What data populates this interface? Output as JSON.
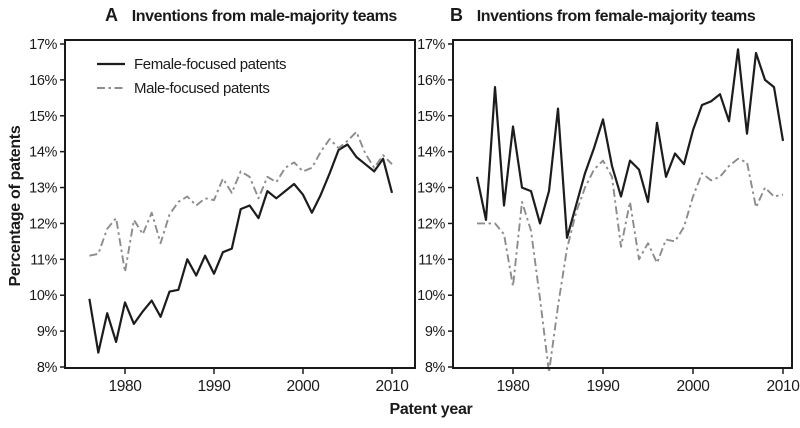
{
  "figure": {
    "background": "#ffffff",
    "text_color": "#1a1a1a",
    "axis_color": "#1a1a1a",
    "y_axis_label": "Percentage of patents",
    "x_axis_label": "Patent year",
    "panel_a": {
      "panel_letter": "A",
      "title": "Inventions from male-majority teams"
    },
    "panel_b": {
      "panel_letter": "B",
      "title": "Inventions from female-majority teams"
    },
    "legend": [
      {
        "label": "Female-focused patents",
        "style": "solid",
        "color": "#1c1c1c"
      },
      {
        "label": "Male-focused patents",
        "style": "dash-dot",
        "color": "#8c8c8c"
      }
    ]
  },
  "chart_data": [
    {
      "type": "line",
      "panel": "A",
      "title": "Inventions from male-majority teams",
      "xlabel": "Patent year",
      "ylabel": "Percentage of patents",
      "ylim": [
        8,
        17
      ],
      "grid": false,
      "legend_position": "top-left-inside",
      "y_ticks": [
        {
          "value": 8,
          "label": "8%"
        },
        {
          "value": 9,
          "label": "9%"
        },
        {
          "value": 10,
          "label": "10%"
        },
        {
          "value": 11,
          "label": "11%"
        },
        {
          "value": 12,
          "label": "12%"
        },
        {
          "value": 13,
          "label": "13%"
        },
        {
          "value": 14,
          "label": "14%"
        },
        {
          "value": 15,
          "label": "15%"
        },
        {
          "value": 16,
          "label": "16%"
        },
        {
          "value": 17,
          "label": "17%"
        }
      ],
      "x_ticks": [
        {
          "value": 1980,
          "label": "1980"
        },
        {
          "value": 1990,
          "label": "1990"
        },
        {
          "value": 2000,
          "label": "2000"
        },
        {
          "value": 2010,
          "label": "2010"
        }
      ],
      "x": [
        1976,
        1977,
        1978,
        1979,
        1980,
        1981,
        1982,
        1983,
        1984,
        1985,
        1986,
        1987,
        1988,
        1989,
        1990,
        1991,
        1992,
        1993,
        1994,
        1995,
        1996,
        1997,
        1998,
        1999,
        2000,
        2001,
        2002,
        2003,
        2004,
        2005,
        2006,
        2007,
        2008,
        2009,
        2010
      ],
      "series": [
        {
          "name": "Female-focused patents",
          "style": "solid",
          "color": "#1c1c1c",
          "values": [
            9.9,
            8.4,
            9.5,
            8.7,
            9.8,
            9.2,
            9.55,
            9.85,
            9.4,
            10.1,
            10.15,
            11.0,
            10.55,
            11.1,
            10.6,
            11.2,
            11.3,
            12.4,
            12.5,
            12.15,
            12.9,
            12.7,
            12.9,
            13.1,
            12.8,
            12.3,
            12.8,
            13.4,
            14.05,
            14.2,
            13.85,
            13.65,
            13.45,
            13.8,
            12.85
          ]
        },
        {
          "name": "Male-focused patents",
          "style": "dash-dot",
          "color": "#8c8c8c",
          "values": [
            11.1,
            11.15,
            11.85,
            12.15,
            10.65,
            12.1,
            11.7,
            12.3,
            11.45,
            12.25,
            12.6,
            12.75,
            12.5,
            12.7,
            12.65,
            13.25,
            12.85,
            13.45,
            13.3,
            12.7,
            13.3,
            13.15,
            13.55,
            13.7,
            13.45,
            13.55,
            14.0,
            14.35,
            14.1,
            14.3,
            14.55,
            13.95,
            13.55,
            13.9,
            13.65
          ]
        }
      ]
    },
    {
      "type": "line",
      "panel": "B",
      "title": "Inventions from female-majority teams",
      "xlabel": "Patent year",
      "ylabel": "Percentage of patents",
      "ylim": [
        8,
        17
      ],
      "grid": false,
      "legend_position": "none",
      "y_ticks": [
        {
          "value": 8,
          "label": "8%"
        },
        {
          "value": 9,
          "label": "9%"
        },
        {
          "value": 10,
          "label": "10%"
        },
        {
          "value": 11,
          "label": "11%"
        },
        {
          "value": 12,
          "label": "12%"
        },
        {
          "value": 13,
          "label": "13%"
        },
        {
          "value": 14,
          "label": "14%"
        },
        {
          "value": 15,
          "label": "15%"
        },
        {
          "value": 16,
          "label": "16%"
        },
        {
          "value": 17,
          "label": "17%"
        }
      ],
      "x_ticks": [
        {
          "value": 1980,
          "label": "1980"
        },
        {
          "value": 1990,
          "label": "1990"
        },
        {
          "value": 2000,
          "label": "2000"
        },
        {
          "value": 2010,
          "label": "2010"
        }
      ],
      "x": [
        1976,
        1977,
        1978,
        1979,
        1980,
        1981,
        1982,
        1983,
        1984,
        1985,
        1986,
        1987,
        1988,
        1989,
        1990,
        1991,
        1992,
        1993,
        1994,
        1995,
        1996,
        1997,
        1998,
        1999,
        2000,
        2001,
        2002,
        2003,
        2004,
        2005,
        2006,
        2007,
        2008,
        2009,
        2010
      ],
      "series": [
        {
          "name": "Female-focused patents",
          "style": "solid",
          "color": "#1c1c1c",
          "values": [
            13.3,
            12.1,
            15.8,
            12.5,
            14.7,
            13.0,
            12.9,
            12.0,
            12.9,
            15.2,
            11.6,
            12.5,
            13.4,
            14.1,
            14.9,
            13.6,
            12.75,
            13.75,
            13.5,
            12.6,
            14.8,
            13.3,
            13.95,
            13.65,
            14.6,
            15.3,
            15.4,
            15.6,
            14.85,
            16.85,
            14.5,
            16.75,
            16.0,
            15.8,
            14.3
          ]
        },
        {
          "name": "Male-focused patents",
          "style": "dash-dot",
          "color": "#8c8c8c",
          "values": [
            12.0,
            12.0,
            12.0,
            11.7,
            10.25,
            12.6,
            11.8,
            9.9,
            7.85,
            9.7,
            11.3,
            12.3,
            13.0,
            13.5,
            13.75,
            13.3,
            11.35,
            12.6,
            11.0,
            11.45,
            10.9,
            11.55,
            11.5,
            11.9,
            12.75,
            13.4,
            13.2,
            13.3,
            13.6,
            13.8,
            13.7,
            12.45,
            13.0,
            12.75,
            12.8
          ]
        }
      ]
    }
  ]
}
